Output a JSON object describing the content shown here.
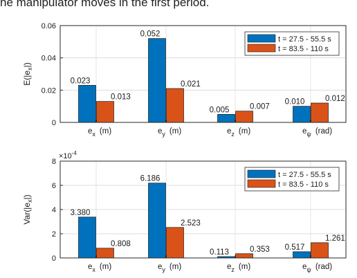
{
  "caption": "he manipulator moves in the first period.",
  "colors": {
    "series1": "#0072BD",
    "series2": "#D95319"
  },
  "chart_data": [
    {
      "type": "bar",
      "ylabel": "E(|e_x|)",
      "ylim": [
        0,
        0.06
      ],
      "yticks": [
        "0",
        "0.02",
        "0.04",
        "0.06"
      ],
      "exponent": "",
      "categories": [
        {
          "main": "e",
          "sub": "x",
          "unit": "(m)"
        },
        {
          "main": "e",
          "sub": "y",
          "unit": "(m)"
        },
        {
          "main": "e",
          "sub": "z",
          "unit": "(m)"
        },
        {
          "main": "e",
          "sub": "ψ",
          "unit": "(rad)"
        }
      ],
      "series": [
        {
          "name": "t = 27.5 - 55.5 s",
          "values": [
            0.023,
            0.052,
            0.005,
            0.01
          ],
          "labels": [
            "0.023",
            "0.052",
            "0.005",
            "0.010"
          ]
        },
        {
          "name": "t = 83.5 - 110 s",
          "values": [
            0.013,
            0.021,
            0.007,
            0.012
          ],
          "labels": [
            "0.013",
            "0.021",
            "0.007",
            "0.012"
          ]
        }
      ],
      "grid": true,
      "legend": "top-right"
    },
    {
      "type": "bar",
      "ylabel": "Var(|e_x|)",
      "ylim": [
        0,
        8
      ],
      "yticks": [
        "0",
        "2",
        "4",
        "6",
        "8"
      ],
      "exponent": "×10-4",
      "categories": [
        {
          "main": "e",
          "sub": "x",
          "unit": "(m)"
        },
        {
          "main": "e",
          "sub": "y",
          "unit": "(m)"
        },
        {
          "main": "e",
          "sub": "z",
          "unit": "(m)"
        },
        {
          "main": "e",
          "sub": "ψ",
          "unit": "(rad)"
        }
      ],
      "series": [
        {
          "name": "t = 27.5 - 55.5 s",
          "values": [
            3.38,
            6.186,
            0.113,
            0.517
          ],
          "labels": [
            "3.380",
            "6.186",
            "0.113",
            "0.517"
          ]
        },
        {
          "name": "t = 83.5 - 110 s",
          "values": [
            0.808,
            2.523,
            0.353,
            1.261
          ],
          "labels": [
            "0.808",
            "2.523",
            "0.353",
            "1.261"
          ]
        }
      ],
      "grid": true,
      "legend": "top-right"
    }
  ]
}
